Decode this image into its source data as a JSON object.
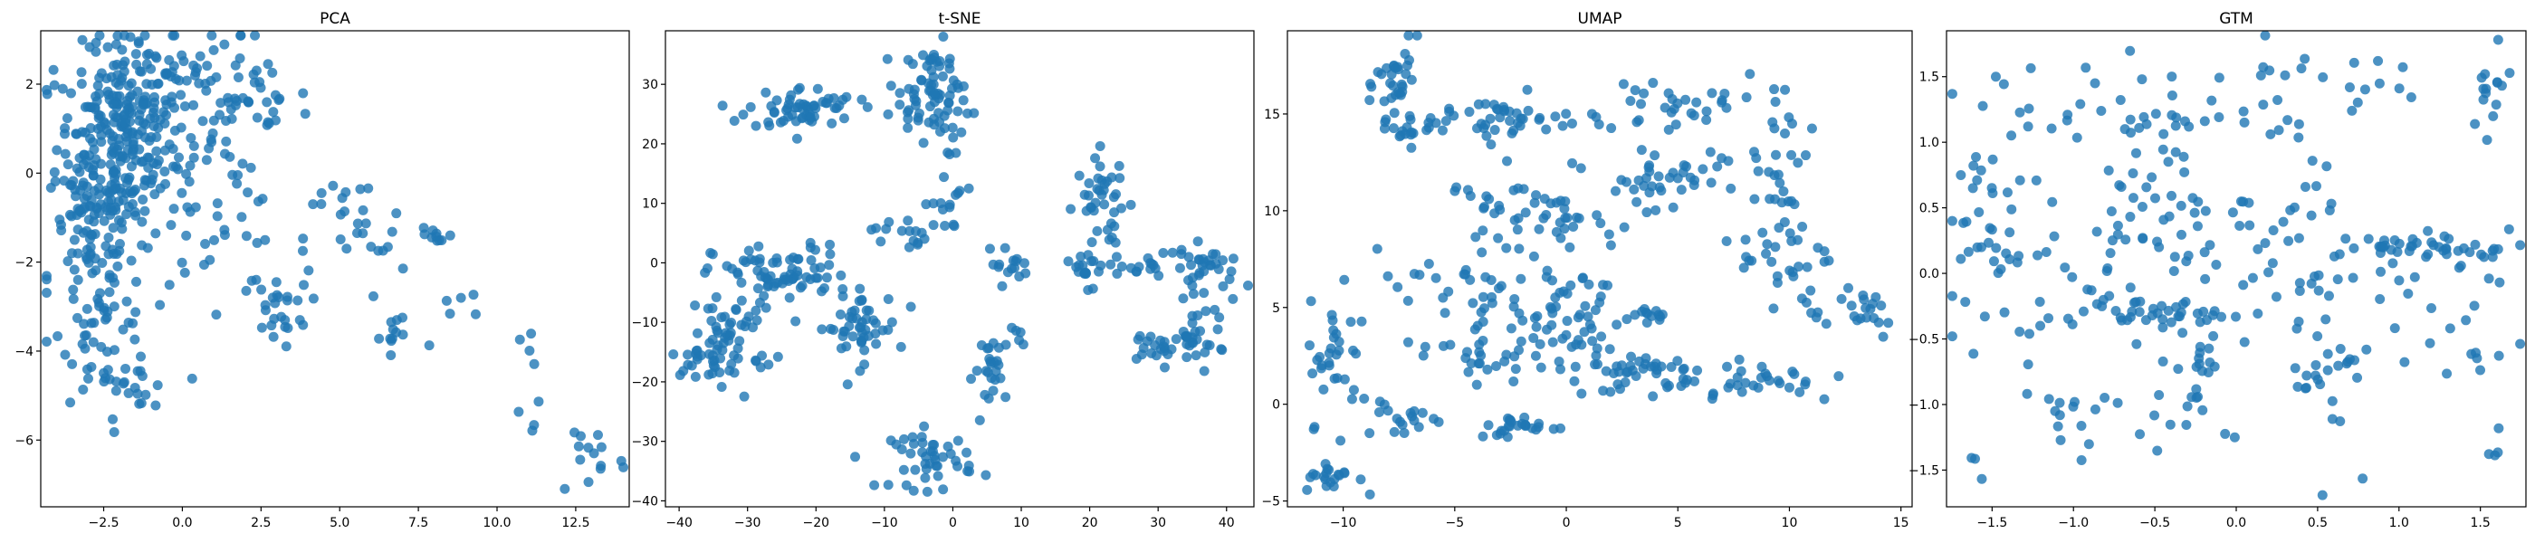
{
  "marker_color": "#1f77b4",
  "chart_data": [
    {
      "type": "scatter",
      "title": "PCA",
      "xlabel": "",
      "ylabel": "",
      "xlim": [
        -4.5,
        14.2
      ],
      "ylim": [
        -7.5,
        3.2
      ],
      "xticks": [
        -2.5,
        0.0,
        2.5,
        5.0,
        7.5,
        10.0,
        12.5
      ],
      "yticks": [
        -6,
        -4,
        -2,
        0,
        2
      ],
      "xtick_labels": [
        "−2.5",
        "0.0",
        "2.5",
        "5.0",
        "7.5",
        "10.0",
        "12.5"
      ],
      "ytick_labels": [
        "−6",
        "−4",
        "−2",
        "0",
        "2"
      ],
      "grid": false,
      "clusters": [
        {
          "cx": -2.0,
          "cy": 0.6,
          "sx": 1.0,
          "sy": 1.1,
          "n": 240
        },
        {
          "cx": -1.2,
          "cy": 2.2,
          "sx": 1.0,
          "sy": 0.5,
          "n": 60
        },
        {
          "cx": 1.5,
          "cy": 1.6,
          "sx": 1.3,
          "sy": 0.8,
          "n": 70
        },
        {
          "cx": -2.8,
          "cy": -1.5,
          "sx": 0.7,
          "sy": 0.9,
          "n": 80
        },
        {
          "cx": -2.4,
          "cy": -3.5,
          "sx": 0.7,
          "sy": 0.8,
          "n": 50
        },
        {
          "cx": -1.5,
          "cy": -5.0,
          "sx": 0.5,
          "sy": 0.4,
          "n": 15
        },
        {
          "cx": 1.0,
          "cy": -1.0,
          "sx": 1.2,
          "sy": 0.9,
          "n": 40
        },
        {
          "cx": 3.0,
          "cy": -3.0,
          "sx": 0.5,
          "sy": 0.4,
          "n": 25
        },
        {
          "cx": 5.5,
          "cy": -1.5,
          "sx": 0.8,
          "sy": 0.7,
          "n": 25
        },
        {
          "cx": 6.8,
          "cy": -3.7,
          "sx": 0.6,
          "sy": 0.4,
          "n": 12
        },
        {
          "cx": 8.0,
          "cy": -1.4,
          "sx": 0.3,
          "sy": 0.2,
          "n": 10
        },
        {
          "cx": 9.0,
          "cy": -3.0,
          "sx": 0.6,
          "sy": 0.2,
          "n": 5
        },
        {
          "cx": 11.2,
          "cy": -4.6,
          "sx": 0.3,
          "sy": 0.8,
          "n": 8
        },
        {
          "cx": 13.0,
          "cy": -6.3,
          "sx": 0.6,
          "sy": 0.5,
          "n": 14
        }
      ]
    },
    {
      "type": "scatter",
      "title": "t-SNE",
      "xlabel": "",
      "ylabel": "",
      "xlim": [
        -42,
        44
      ],
      "ylim": [
        -41,
        39
      ],
      "xticks": [
        -40,
        -30,
        -20,
        -10,
        0,
        10,
        20,
        30,
        40
      ],
      "yticks": [
        -40,
        -30,
        -20,
        -10,
        0,
        10,
        20,
        30
      ],
      "xtick_labels": [
        "−40",
        "−30",
        "−20",
        "−10",
        "0",
        "10",
        "20",
        "30",
        "40"
      ],
      "ytick_labels": [
        "−40",
        "−30",
        "−20",
        "−10",
        "0",
        "10",
        "20",
        "30"
      ],
      "grid": false,
      "clusters": [
        {
          "cx": -22,
          "cy": 26,
          "sx": 4.0,
          "sy": 1.8,
          "n": 60
        },
        {
          "cx": -3,
          "cy": 31,
          "sx": 2.5,
          "sy": 3.0,
          "n": 45
        },
        {
          "cx": -4,
          "cy": 24,
          "sx": 3.0,
          "sy": 3.0,
          "n": 35
        },
        {
          "cx": -1,
          "cy": 10,
          "sx": 1.5,
          "sy": 2.5,
          "n": 15
        },
        {
          "cx": -8,
          "cy": 5,
          "sx": 2.0,
          "sy": 1.5,
          "n": 15
        },
        {
          "cx": -25,
          "cy": -2,
          "sx": 5.0,
          "sy": 2.5,
          "n": 70
        },
        {
          "cx": -32,
          "cy": -12,
          "sx": 3.0,
          "sy": 4.0,
          "n": 50
        },
        {
          "cx": -36,
          "cy": -16,
          "sx": 2.5,
          "sy": 1.5,
          "n": 25
        },
        {
          "cx": -14,
          "cy": -11,
          "sx": 3.0,
          "sy": 3.0,
          "n": 50
        },
        {
          "cx": 8,
          "cy": 0,
          "sx": 1.5,
          "sy": 1.5,
          "n": 15
        },
        {
          "cx": 6,
          "cy": -18,
          "sx": 1.5,
          "sy": 3.0,
          "n": 25
        },
        {
          "cx": 10,
          "cy": -13,
          "sx": 1.0,
          "sy": 1.0,
          "n": 5
        },
        {
          "cx": -3,
          "cy": -33,
          "sx": 3.0,
          "sy": 2.5,
          "n": 45
        },
        {
          "cx": 22,
          "cy": 10,
          "sx": 2.0,
          "sy": 4.0,
          "n": 40
        },
        {
          "cx": 20,
          "cy": -1,
          "sx": 2.5,
          "sy": 1.5,
          "n": 20
        },
        {
          "cx": 30,
          "cy": 0,
          "sx": 3.0,
          "sy": 1.5,
          "n": 20
        },
        {
          "cx": 38,
          "cy": -2,
          "sx": 2.0,
          "sy": 2.5,
          "n": 25
        },
        {
          "cx": 31,
          "cy": -14,
          "sx": 3.5,
          "sy": 1.5,
          "n": 30
        },
        {
          "cx": 36,
          "cy": -12,
          "sx": 2.0,
          "sy": 2.5,
          "n": 20
        }
      ]
    },
    {
      "type": "scatter",
      "title": "UMAP",
      "xlabel": "",
      "ylabel": "",
      "xlim": [
        -12.5,
        15.5
      ],
      "ylim": [
        -5.3,
        19.3
      ],
      "xticks": [
        -10,
        -5,
        0,
        5,
        10,
        15
      ],
      "yticks": [
        -5,
        0,
        5,
        10,
        15
      ],
      "xtick_labels": [
        "−10",
        "−5",
        "0",
        "5",
        "10",
        "15"
      ],
      "ytick_labels": [
        "−5",
        "0",
        "5",
        "10",
        "15"
      ],
      "grid": false,
      "clusters": [
        {
          "cx": -7.5,
          "cy": 16.5,
          "sx": 0.5,
          "sy": 1.3,
          "n": 35
        },
        {
          "cx": -7.5,
          "cy": 14.0,
          "sx": 0.8,
          "sy": 0.3,
          "n": 12
        },
        {
          "cx": -2.5,
          "cy": 14.7,
          "sx": 2.5,
          "sy": 0.6,
          "n": 50
        },
        {
          "cx": 4.5,
          "cy": 15.3,
          "sx": 1.3,
          "sy": 0.5,
          "n": 25
        },
        {
          "cx": 5.2,
          "cy": 12.3,
          "sx": 1.5,
          "sy": 0.5,
          "n": 20
        },
        {
          "cx": 9.5,
          "cy": 13.5,
          "sx": 0.8,
          "sy": 2.0,
          "n": 30
        },
        {
          "cx": -2.5,
          "cy": 11.0,
          "sx": 1.5,
          "sy": 1.0,
          "n": 25
        },
        {
          "cx": 0.0,
          "cy": 9.5,
          "sx": 1.2,
          "sy": 0.6,
          "n": 20
        },
        {
          "cx": 3.0,
          "cy": 10.5,
          "sx": 1.3,
          "sy": 1.0,
          "n": 20
        },
        {
          "cx": -5.5,
          "cy": 6.5,
          "sx": 2.5,
          "sy": 1.2,
          "n": 35
        },
        {
          "cx": -3.5,
          "cy": 3.5,
          "sx": 1.5,
          "sy": 1.0,
          "n": 25
        },
        {
          "cx": 0.0,
          "cy": 4.5,
          "sx": 1.3,
          "sy": 1.2,
          "n": 40
        },
        {
          "cx": 2.5,
          "cy": 2.0,
          "sx": 1.5,
          "sy": 0.6,
          "n": 30
        },
        {
          "cx": 4.0,
          "cy": 1.3,
          "sx": 1.0,
          "sy": 0.5,
          "n": 20
        },
        {
          "cx": 3.8,
          "cy": 4.7,
          "sx": 0.5,
          "sy": 0.2,
          "n": 12
        },
        {
          "cx": 9.8,
          "cy": 7.8,
          "sx": 1.0,
          "sy": 1.2,
          "n": 30
        },
        {
          "cx": 12.5,
          "cy": 5.0,
          "sx": 1.5,
          "sy": 0.8,
          "n": 25
        },
        {
          "cx": 8.8,
          "cy": 1.3,
          "sx": 2.0,
          "sy": 0.6,
          "n": 30
        },
        {
          "cx": -10.3,
          "cy": 2.2,
          "sx": 0.6,
          "sy": 1.6,
          "n": 30
        },
        {
          "cx": -10.5,
          "cy": -3.8,
          "sx": 0.6,
          "sy": 0.4,
          "n": 20
        },
        {
          "cx": -7.5,
          "cy": -0.5,
          "sx": 1.0,
          "sy": 0.6,
          "n": 20
        },
        {
          "cx": -2.0,
          "cy": -1.2,
          "sx": 1.0,
          "sy": 0.3,
          "n": 25
        },
        {
          "cx": -3.0,
          "cy": 2.3,
          "sx": 1.0,
          "sy": 0.6,
          "n": 15
        }
      ]
    },
    {
      "type": "scatter",
      "title": "GTM",
      "xlabel": "",
      "ylabel": "",
      "xlim": [
        -1.78,
        1.78
      ],
      "ylim": [
        -1.78,
        1.85
      ],
      "xticks": [
        -1.5,
        -1.0,
        -0.5,
        0.0,
        0.5,
        1.0,
        1.5
      ],
      "yticks": [
        -1.5,
        -1.0,
        -0.5,
        0.0,
        0.5,
        1.0,
        1.5
      ],
      "xtick_labels": [
        "−1.5",
        "−1.0",
        "−0.5",
        "0.0",
        "0.5",
        "1.0",
        "1.5"
      ],
      "ytick_labels": [
        "−1.5",
        "−1.0",
        "−0.5",
        "0.0",
        "0.5",
        "1.0",
        "1.5"
      ],
      "grid": false,
      "clusters": [
        {
          "cx": -0.4,
          "cy": 1.2,
          "sx": 0.5,
          "sy": 0.2,
          "n": 50
        },
        {
          "cx": 0.6,
          "cy": 1.5,
          "sx": 0.3,
          "sy": 0.15,
          "n": 15
        },
        {
          "cx": 1.55,
          "cy": 1.4,
          "sx": 0.1,
          "sy": 0.25,
          "n": 15
        },
        {
          "cx": -1.45,
          "cy": 1.1,
          "sx": 0.15,
          "sy": 0.3,
          "n": 15
        },
        {
          "cx": -0.5,
          "cy": 0.4,
          "sx": 0.3,
          "sy": 0.2,
          "n": 45
        },
        {
          "cx": 1.2,
          "cy": 0.2,
          "sx": 0.3,
          "sy": 0.05,
          "n": 40
        },
        {
          "cx": 0.4,
          "cy": 0.2,
          "sx": 0.3,
          "sy": 0.3,
          "n": 30
        },
        {
          "cx": -0.5,
          "cy": -0.3,
          "sx": 0.2,
          "sy": 0.05,
          "n": 30
        },
        {
          "cx": -1.6,
          "cy": 0.3,
          "sx": 0.1,
          "sy": 0.3,
          "n": 20
        },
        {
          "cx": -1.2,
          "cy": -0.2,
          "sx": 0.3,
          "sy": 0.3,
          "n": 30
        },
        {
          "cx": -0.25,
          "cy": -0.7,
          "sx": 0.1,
          "sy": 0.25,
          "n": 20
        },
        {
          "cx": 0.55,
          "cy": -0.8,
          "sx": 0.1,
          "sy": 0.3,
          "n": 20
        },
        {
          "cx": -1.0,
          "cy": -1.1,
          "sx": 0.3,
          "sy": 0.15,
          "n": 20
        },
        {
          "cx": 1.3,
          "cy": -0.3,
          "sx": 0.3,
          "sy": 0.4,
          "n": 25
        },
        {
          "cx": 0.1,
          "cy": -0.3,
          "sx": 0.5,
          "sy": 0.4,
          "n": 25
        },
        {
          "cx": -1.6,
          "cy": -1.5,
          "sx": 0.05,
          "sy": 0.1,
          "n": 3
        },
        {
          "cx": 1.58,
          "cy": -1.3,
          "sx": 0.04,
          "sy": 0.1,
          "n": 4
        }
      ]
    }
  ]
}
